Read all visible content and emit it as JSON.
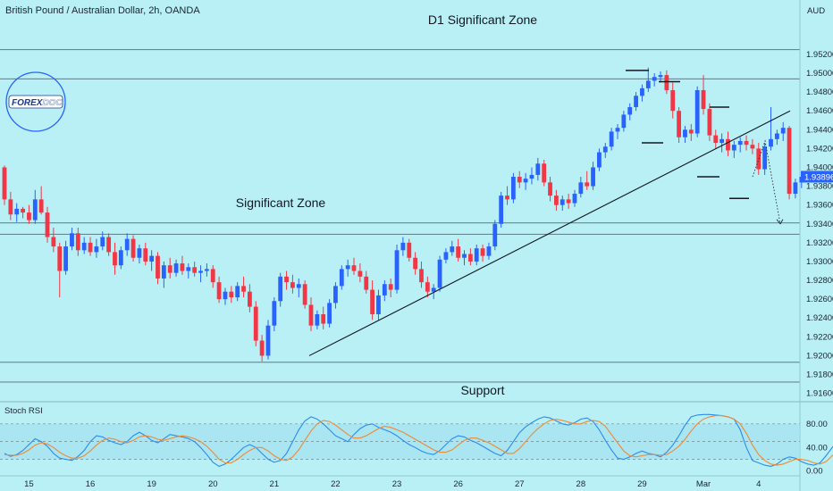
{
  "header": {
    "title": "British Pound / Australian Dollar, 2h, OANDA",
    "currency": "AUD"
  },
  "logo": {
    "text_a": "FOREX",
    "text_b": "DOC"
  },
  "colors": {
    "background": "#b8f0f5",
    "up": "#2962ff",
    "down": "#f23645",
    "zone_fill": "#b8f0f5",
    "zone_stroke": "#546e7a",
    "rsi_k": "#2a8cf0",
    "rsi_d": "#f08a30",
    "price_tag": "#2962ff"
  },
  "chart_data": [
    {
      "type": "candlestick",
      "title": "",
      "x_ticks": [
        "15",
        "16",
        "19",
        "20",
        "21",
        "22",
        "23",
        "26",
        "27",
        "28",
        "29",
        "Mar",
        "4"
      ],
      "y_ticks": [
        "1.95200",
        "1.95000",
        "1.94800",
        "1.94600",
        "1.94400",
        "1.94200",
        "1.94000",
        "1.93800",
        "1.93600",
        "1.93400",
        "1.93200",
        "1.93000",
        "1.92800",
        "1.92600",
        "1.92400",
        "1.92200",
        "1.92000",
        "1.91800",
        "1.91600"
      ],
      "ylim": [
        1.9153,
        1.9555
      ],
      "last_price": "1.93896",
      "zones": [
        {
          "label": "D1 Significant Zone",
          "low": 1.9494,
          "high": 1.9525
        },
        {
          "label": "Significant Zone",
          "low": 1.9329,
          "high": 1.9341
        },
        {
          "label": "Support",
          "low": 1.9172,
          "high": 1.9193
        }
      ],
      "trendline": {
        "from": [
          "21",
          1.92
        ],
        "to": [
          "29+",
          1.946
        ]
      },
      "projection": {
        "from": 1.939,
        "via": 1.9428,
        "to": 1.934
      },
      "key_levels": [
        1.9503,
        1.9491,
        1.9426,
        1.9464,
        1.939,
        1.9367
      ],
      "ohlc": [
        [
          1.94,
          1.9402,
          1.936,
          1.9366
        ],
        [
          1.9366,
          1.9374,
          1.9344,
          1.935
        ],
        [
          1.935,
          1.9362,
          1.9342,
          1.9356
        ],
        [
          1.9356,
          1.9358,
          1.9346,
          1.9352
        ],
        [
          1.9352,
          1.936,
          1.934,
          1.9344
        ],
        [
          1.9344,
          1.9376,
          1.934,
          1.9366
        ],
        [
          1.9366,
          1.938,
          1.935,
          1.9352
        ],
        [
          1.9352,
          1.9358,
          1.932,
          1.9326
        ],
        [
          1.9326,
          1.9336,
          1.931,
          1.9316
        ],
        [
          1.9316,
          1.932,
          1.9262,
          1.929
        ],
        [
          1.929,
          1.9322,
          1.9286,
          1.9316
        ],
        [
          1.9316,
          1.9336,
          1.9312,
          1.933
        ],
        [
          1.933,
          1.9336,
          1.9306,
          1.9312
        ],
        [
          1.9312,
          1.9326,
          1.9308,
          1.932
        ],
        [
          1.932,
          1.9326,
          1.9306,
          1.931
        ],
        [
          1.931,
          1.9324,
          1.9304,
          1.9316
        ],
        [
          1.9316,
          1.9332,
          1.9312,
          1.9326
        ],
        [
          1.9326,
          1.933,
          1.9306,
          1.931
        ],
        [
          1.931,
          1.932,
          1.9286,
          1.9296
        ],
        [
          1.9296,
          1.9316,
          1.9292,
          1.9312
        ],
        [
          1.9312,
          1.933,
          1.9306,
          1.9324
        ],
        [
          1.9324,
          1.9328,
          1.93,
          1.9304
        ],
        [
          1.9304,
          1.9318,
          1.9298,
          1.9314
        ],
        [
          1.9314,
          1.932,
          1.9296,
          1.93
        ],
        [
          1.93,
          1.9312,
          1.929,
          1.9306
        ],
        [
          1.9306,
          1.931,
          1.9276,
          1.9282
        ],
        [
          1.9282,
          1.93,
          1.9272,
          1.9296
        ],
        [
          1.9296,
          1.9304,
          1.9282,
          1.9288
        ],
        [
          1.9288,
          1.9302,
          1.9284,
          1.9298
        ],
        [
          1.9298,
          1.9306,
          1.9286,
          1.929
        ],
        [
          1.929,
          1.9298,
          1.9282,
          1.9294
        ],
        [
          1.9294,
          1.93,
          1.9284,
          1.9288
        ],
        [
          1.9288,
          1.9296,
          1.9278,
          1.929
        ],
        [
          1.929,
          1.9298,
          1.9284,
          1.9292
        ],
        [
          1.9292,
          1.9296,
          1.9272,
          1.9278
        ],
        [
          1.9278,
          1.9284,
          1.9256,
          1.926
        ],
        [
          1.926,
          1.9272,
          1.9254,
          1.9268
        ],
        [
          1.9268,
          1.9274,
          1.9256,
          1.9262
        ],
        [
          1.9262,
          1.9278,
          1.9258,
          1.9274
        ],
        [
          1.9274,
          1.9284,
          1.9262,
          1.9268
        ],
        [
          1.9268,
          1.9276,
          1.9246,
          1.9252
        ],
        [
          1.9252,
          1.9258,
          1.921,
          1.9216
        ],
        [
          1.9216,
          1.9222,
          1.9194,
          1.92
        ],
        [
          1.92,
          1.9238,
          1.9196,
          1.9232
        ],
        [
          1.9232,
          1.9262,
          1.9226,
          1.9258
        ],
        [
          1.9258,
          1.9288,
          1.9252,
          1.9284
        ],
        [
          1.9284,
          1.929,
          1.927,
          1.9278
        ],
        [
          1.9278,
          1.9286,
          1.9266,
          1.9272
        ],
        [
          1.9272,
          1.9282,
          1.9262,
          1.9276
        ],
        [
          1.9276,
          1.928,
          1.925,
          1.9254
        ],
        [
          1.9254,
          1.9262,
          1.9226,
          1.9232
        ],
        [
          1.9232,
          1.9248,
          1.9228,
          1.9244
        ],
        [
          1.9244,
          1.9252,
          1.9228,
          1.9234
        ],
        [
          1.9234,
          1.926,
          1.923,
          1.9256
        ],
        [
          1.9256,
          1.9278,
          1.925,
          1.9274
        ],
        [
          1.9274,
          1.9296,
          1.927,
          1.9292
        ],
        [
          1.9292,
          1.9302,
          1.9284,
          1.9296
        ],
        [
          1.9296,
          1.9304,
          1.9286,
          1.929
        ],
        [
          1.929,
          1.9298,
          1.9278,
          1.9284
        ],
        [
          1.9284,
          1.929,
          1.9266,
          1.927
        ],
        [
          1.927,
          1.928,
          1.9238,
          1.9244
        ],
        [
          1.9244,
          1.927,
          1.9238,
          1.9264
        ],
        [
          1.9264,
          1.928,
          1.9258,
          1.9276
        ],
        [
          1.9276,
          1.9282,
          1.9262,
          1.927
        ],
        [
          1.927,
          1.9318,
          1.9266,
          1.9312
        ],
        [
          1.9312,
          1.9326,
          1.9306,
          1.932
        ],
        [
          1.932,
          1.9324,
          1.93,
          1.9304
        ],
        [
          1.9304,
          1.931,
          1.9286,
          1.9292
        ],
        [
          1.9292,
          1.93,
          1.9272,
          1.9278
        ],
        [
          1.9278,
          1.9284,
          1.9262,
          1.9268
        ],
        [
          1.9268,
          1.9276,
          1.926,
          1.9272
        ],
        [
          1.9272,
          1.9306,
          1.9268,
          1.9302
        ],
        [
          1.9302,
          1.9314,
          1.9298,
          1.931
        ],
        [
          1.931,
          1.9322,
          1.9306,
          1.9316
        ],
        [
          1.9316,
          1.9324,
          1.93,
          1.9304
        ],
        [
          1.9304,
          1.9312,
          1.9296,
          1.9308
        ],
        [
          1.9308,
          1.9314,
          1.9296,
          1.93
        ],
        [
          1.93,
          1.9318,
          1.9296,
          1.9314
        ],
        [
          1.9314,
          1.9318,
          1.93,
          1.9306
        ],
        [
          1.9306,
          1.932,
          1.9302,
          1.9316
        ],
        [
          1.9316,
          1.9344,
          1.9312,
          1.934
        ],
        [
          1.934,
          1.9374,
          1.9336,
          1.937
        ],
        [
          1.937,
          1.938,
          1.936,
          1.9366
        ],
        [
          1.9366,
          1.9394,
          1.9362,
          1.939
        ],
        [
          1.939,
          1.9396,
          1.9378,
          1.9384
        ],
        [
          1.9384,
          1.9394,
          1.9376,
          1.9388
        ],
        [
          1.9388,
          1.94,
          1.9382,
          1.9392
        ],
        [
          1.9392,
          1.941,
          1.9386,
          1.9404
        ],
        [
          1.9404,
          1.9408,
          1.938,
          1.9384
        ],
        [
          1.9384,
          1.939,
          1.9364,
          1.937
        ],
        [
          1.937,
          1.9376,
          1.9354,
          1.936
        ],
        [
          1.936,
          1.937,
          1.9354,
          1.9366
        ],
        [
          1.9366,
          1.9372,
          1.9356,
          1.9362
        ],
        [
          1.9362,
          1.9376,
          1.9358,
          1.9372
        ],
        [
          1.9372,
          1.939,
          1.9368,
          1.9384
        ],
        [
          1.9384,
          1.9396,
          1.9376,
          1.938
        ],
        [
          1.938,
          1.9406,
          1.9376,
          1.94
        ],
        [
          1.94,
          1.942,
          1.9396,
          1.9416
        ],
        [
          1.9416,
          1.9426,
          1.941,
          1.9422
        ],
        [
          1.9422,
          1.9442,
          1.9418,
          1.9438
        ],
        [
          1.9438,
          1.9446,
          1.943,
          1.9442
        ],
        [
          1.9442,
          1.946,
          1.9438,
          1.9456
        ],
        [
          1.9456,
          1.9468,
          1.945,
          1.9464
        ],
        [
          1.9464,
          1.948,
          1.946,
          1.9476
        ],
        [
          1.9476,
          1.9488,
          1.947,
          1.9484
        ],
        [
          1.9484,
          1.9506,
          1.948,
          1.9492
        ],
        [
          1.9492,
          1.95,
          1.9486,
          1.9496
        ],
        [
          1.9496,
          1.9502,
          1.949,
          1.9498
        ],
        [
          1.9498,
          1.9503,
          1.9478,
          1.9482
        ],
        [
          1.9482,
          1.949,
          1.9452,
          1.946
        ],
        [
          1.946,
          1.9464,
          1.9426,
          1.9432
        ],
        [
          1.9432,
          1.9444,
          1.9426,
          1.944
        ],
        [
          1.944,
          1.9446,
          1.9428,
          1.9436
        ],
        [
          1.9436,
          1.9486,
          1.9432,
          1.9482
        ],
        [
          1.9482,
          1.9498,
          1.9456,
          1.9462
        ],
        [
          1.9462,
          1.9468,
          1.9428,
          1.9434
        ],
        [
          1.9434,
          1.944,
          1.942,
          1.9426
        ],
        [
          1.9426,
          1.9436,
          1.9416,
          1.943
        ],
        [
          1.943,
          1.9438,
          1.9412,
          1.9418
        ],
        [
          1.9418,
          1.9428,
          1.941,
          1.9424
        ],
        [
          1.9424,
          1.9432,
          1.9416,
          1.9428
        ],
        [
          1.9428,
          1.9434,
          1.9418,
          1.9424
        ],
        [
          1.9424,
          1.943,
          1.9414,
          1.942
        ],
        [
          1.942,
          1.9426,
          1.9392,
          1.9398
        ],
        [
          1.9398,
          1.9426,
          1.9392,
          1.9422
        ],
        [
          1.9422,
          1.9464,
          1.9418,
          1.943
        ],
        [
          1.943,
          1.944,
          1.9424,
          1.9436
        ],
        [
          1.9436,
          1.9448,
          1.9428,
          1.9442
        ],
        [
          1.9442,
          1.9444,
          1.9366,
          1.9372
        ],
        [
          1.9372,
          1.9388,
          1.9367,
          1.9384
        ],
        [
          1.9384,
          1.9392,
          1.9378,
          1.939
        ]
      ]
    },
    {
      "type": "line",
      "title": "Stoch RSI",
      "y_ticks": [
        "80.00",
        "40.00",
        "0.00"
      ],
      "ylim": [
        -8,
        110
      ],
      "bands": {
        "upper": 80,
        "lower": 20
      },
      "series": [
        {
          "values": [
            30,
            25,
            28,
            35,
            45,
            55,
            50,
            42,
            30,
            22,
            20,
            18,
            25,
            35,
            50,
            60,
            58,
            52,
            48,
            45,
            50,
            60,
            66,
            60,
            52,
            48,
            55,
            62,
            60,
            58,
            55,
            50,
            40,
            28,
            15,
            8,
            12,
            20,
            30,
            40,
            45,
            40,
            30,
            20,
            15,
            18,
            30,
            50,
            70,
            85,
            92,
            88,
            80,
            70,
            60,
            55,
            50,
            62,
            72,
            78,
            80,
            74,
            70,
            66,
            60,
            52,
            45,
            40,
            34,
            30,
            28,
            35,
            45,
            55,
            60,
            58,
            52,
            48,
            42,
            36,
            30,
            26,
            35,
            50,
            65,
            75,
            82,
            88,
            92,
            90,
            85,
            80,
            78,
            82,
            88,
            90,
            84,
            70,
            52,
            36,
            22,
            20,
            24,
            30,
            34,
            30,
            28,
            24,
            32,
            44,
            60,
            78,
            92,
            95,
            96,
            96,
            95,
            94,
            92,
            88,
            70,
            40,
            18,
            14,
            10,
            8,
            12,
            20,
            24,
            22,
            16,
            12,
            10,
            14,
            26,
            40,
            52,
            56,
            50,
            38,
            30
          ]
        },
        {
          "values": [
            28,
            27,
            27,
            30,
            36,
            44,
            48,
            46,
            40,
            32,
            26,
            22,
            22,
            26,
            34,
            44,
            52,
            56,
            54,
            50,
            48,
            52,
            58,
            60,
            58,
            54,
            52,
            55,
            58,
            60,
            58,
            55,
            50,
            42,
            32,
            20,
            14,
            14,
            20,
            28,
            35,
            40,
            40,
            34,
            26,
            20,
            18,
            24,
            36,
            52,
            68,
            80,
            86,
            84,
            78,
            70,
            62,
            56,
            56,
            60,
            66,
            72,
            76,
            74,
            70,
            66,
            60,
            54,
            48,
            42,
            36,
            32,
            32,
            36,
            44,
            52,
            56,
            56,
            52,
            48,
            42,
            36,
            30,
            30,
            38,
            50,
            62,
            72,
            80,
            86,
            88,
            86,
            83,
            80,
            80,
            84,
            86,
            84,
            76,
            62,
            48,
            34,
            26,
            24,
            26,
            28,
            28,
            27,
            28,
            34,
            42,
            54,
            68,
            80,
            88,
            92,
            94,
            94,
            92,
            88,
            80,
            64,
            44,
            28,
            18,
            12,
            10,
            12,
            16,
            20,
            20,
            18,
            14,
            12,
            16,
            26,
            36,
            44,
            50,
            48,
            42
          ]
        }
      ]
    }
  ]
}
